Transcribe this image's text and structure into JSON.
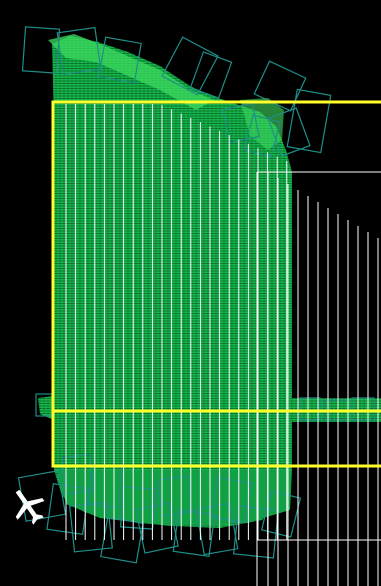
{
  "viewport": {
    "background": "#000000"
  },
  "colors": {
    "footprint_fill": "#14b04a",
    "footprint_fill_light": "#3ddc60",
    "footprint_outline": "#1f8f88",
    "flight_line": "#ffffff",
    "selection_box": "#ffff2a",
    "hatch": "#0a5c22"
  },
  "icons": {
    "aircraft": "aircraft-icon"
  }
}
